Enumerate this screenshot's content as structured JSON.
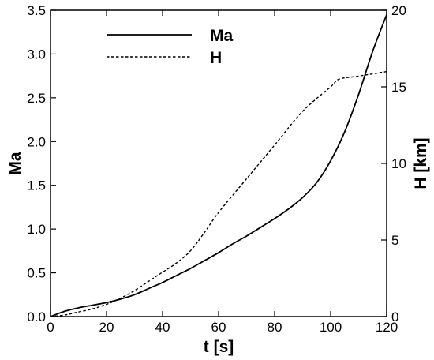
{
  "chart_data": {
    "type": "line",
    "title": "",
    "xlabel": "t [s]",
    "ylabel_left": "Ma",
    "ylabel_right": "H [km]",
    "xlim": [
      0,
      120
    ],
    "ylim_left": [
      0,
      3.5
    ],
    "ylim_right": [
      0,
      20
    ],
    "x_ticks": [
      "0",
      "20",
      "40",
      "60",
      "80",
      "100",
      "120"
    ],
    "y_left_ticks": [
      "0.0",
      "0.5",
      "1.0",
      "1.5",
      "2.0",
      "2.5",
      "3.0",
      "3.5"
    ],
    "y_right_ticks": [
      "0",
      "5",
      "10",
      "15",
      "20"
    ],
    "grid": false,
    "legend_position": "top-left",
    "series": [
      {
        "name": "Ma",
        "axis": "left",
        "style": "solid",
        "x": [
          0,
          5,
          10,
          15,
          20,
          25,
          30,
          35,
          40,
          45,
          50,
          55,
          60,
          65,
          70,
          75,
          80,
          85,
          90,
          95,
          100,
          105,
          110,
          115,
          120
        ],
        "y": [
          0.0,
          0.06,
          0.1,
          0.13,
          0.16,
          0.2,
          0.25,
          0.32,
          0.39,
          0.47,
          0.55,
          0.64,
          0.73,
          0.83,
          0.92,
          1.02,
          1.12,
          1.23,
          1.36,
          1.53,
          1.78,
          2.11,
          2.54,
          3.03,
          3.45
        ]
      },
      {
        "name": "H",
        "axis": "right",
        "style": "dashed",
        "x": [
          0,
          5,
          10,
          15,
          20,
          25,
          30,
          35,
          40,
          45,
          50,
          55,
          60,
          70,
          80,
          90,
          100,
          103,
          110,
          120
        ],
        "y": [
          0.0,
          0.1,
          0.3,
          0.5,
          0.8,
          1.2,
          1.7,
          2.3,
          2.9,
          3.5,
          4.3,
          5.5,
          6.8,
          9.0,
          11.2,
          13.4,
          15.0,
          15.5,
          15.7,
          16.0
        ]
      }
    ]
  }
}
